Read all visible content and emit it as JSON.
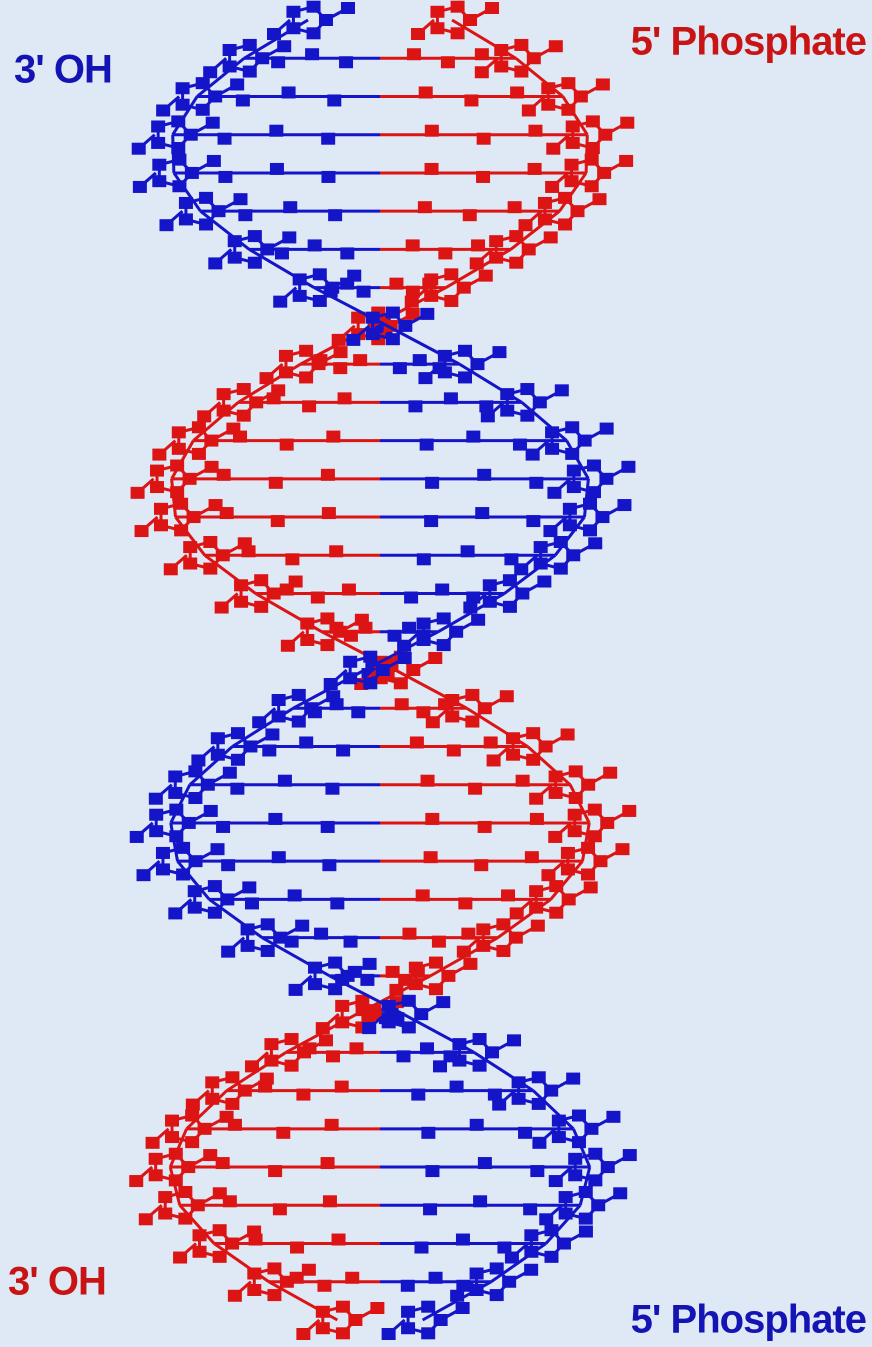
{
  "top": {
    "left": "3' OH",
    "right": "5' Phosphate"
  },
  "bottom": {
    "left": "3' OH",
    "right": "5' Phosphate"
  }
}
